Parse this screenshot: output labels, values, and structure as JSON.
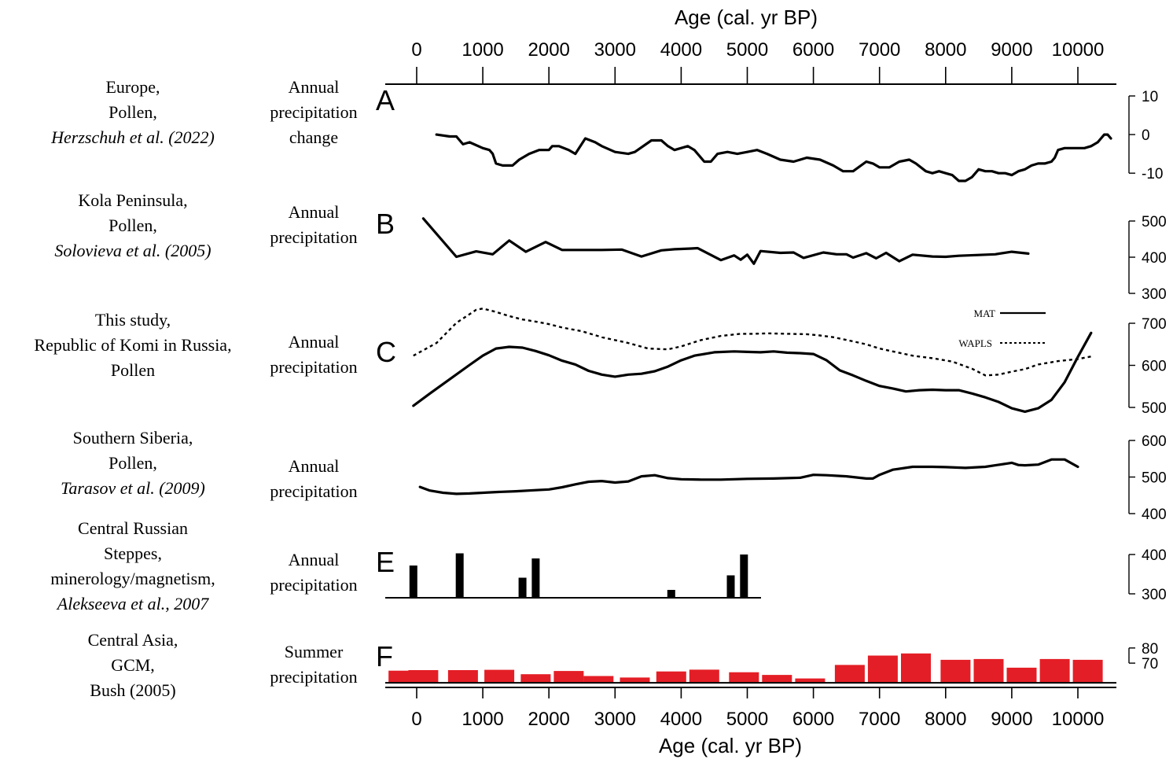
{
  "top_axis": {
    "title": "Age (cal. yr BP)",
    "ticks": [
      "0",
      "1000",
      "2000",
      "3000",
      "4000",
      "5000",
      "6000",
      "7000",
      "8000",
      "9000",
      "10000"
    ]
  },
  "bottom_axis": {
    "title": "Age (cal. yr BP)",
    "ticks": [
      "0",
      "1000",
      "2000",
      "3000",
      "4000",
      "5000",
      "6000",
      "7000",
      "8000",
      "9000",
      "10000"
    ]
  },
  "colors": {
    "line": "#000000",
    "bar_red": "#e41e26",
    "bar_black": "#000000"
  },
  "chart_data": [
    {
      "id": "A",
      "type": "line",
      "letter": "A",
      "source": {
        "line1": "Europe,",
        "line2": "Pollen,",
        "line3": "Herzschuh et al. (2022)"
      },
      "title": {
        "line1": "Annual",
        "line2": "precipitation",
        "line3": "change"
      },
      "ylim": [
        -12,
        10
      ],
      "yticks": [
        "10",
        "0",
        "-10"
      ],
      "ytick_values": [
        10,
        0,
        -10
      ],
      "series": [
        {
          "style": "solid",
          "x": [
            300,
            500,
            600,
            700,
            800,
            1000,
            1100,
            1150,
            1200,
            1300,
            1450,
            1550,
            1700,
            1850,
            2000,
            2050,
            2150,
            2300,
            2400,
            2550,
            2700,
            2800,
            3000,
            3200,
            3300,
            3550,
            3700,
            3800,
            3900,
            4100,
            4200,
            4350,
            4450,
            4550,
            4700,
            4850,
            5000,
            5150,
            5300,
            5500,
            5700,
            5900,
            6100,
            6300,
            6450,
            6600,
            6800,
            6900,
            7000,
            7150,
            7300,
            7450,
            7550,
            7700,
            7800,
            7900,
            8000,
            8100,
            8200,
            8300,
            8400,
            8500,
            8600,
            8700,
            8800,
            8900,
            9000,
            9100,
            9200,
            9300,
            9400,
            9500,
            9600,
            9650,
            9700,
            9800,
            10000,
            10100,
            10200,
            10250,
            10300,
            10350,
            10400,
            10450,
            10500
          ],
          "y": [
            0,
            -0.5,
            -0.5,
            -2.5,
            -2,
            -3.5,
            -4,
            -5,
            -7.5,
            -8,
            -8,
            -6.5,
            -5,
            -4,
            -4,
            -3,
            -3,
            -4,
            -5,
            -1,
            -2,
            -3,
            -4.5,
            -5,
            -4.5,
            -1.5,
            -1.5,
            -3,
            -4,
            -3,
            -4,
            -7,
            -7,
            -5,
            -4.5,
            -5,
            -4.5,
            -4,
            -5,
            -6.5,
            -7,
            -6,
            -6.5,
            -8,
            -9.5,
            -9.5,
            -7,
            -7.5,
            -8.5,
            -8.5,
            -7,
            -6.5,
            -7.5,
            -9.5,
            -10,
            -9.5,
            -10,
            -10.5,
            -12,
            -12,
            -11,
            -9,
            -9.5,
            -9.5,
            -10,
            -10,
            -10.5,
            -9.5,
            -9,
            -8,
            -7.5,
            -7.5,
            -7,
            -6,
            -4,
            -3.5,
            -3.5,
            -3.5,
            -3,
            -2.5,
            -2,
            -1,
            0,
            0,
            -1
          ]
        }
      ]
    },
    {
      "id": "B",
      "type": "line",
      "letter": "B",
      "source": {
        "line1": "Kola Peninsula,",
        "line2": "Pollen,",
        "line3": "Solovieva et al. (2005)"
      },
      "title": {
        "line1": "Annual",
        "line2": "precipitation",
        "line3": ""
      },
      "ylim": [
        300,
        500
      ],
      "yticks": [
        "500",
        "400",
        "300"
      ],
      "ytick_values": [
        500,
        400,
        300
      ],
      "series": [
        {
          "style": "solid",
          "x": [
            100,
            600,
            900,
            1150,
            1400,
            1650,
            1950,
            2200,
            2500,
            2800,
            3100,
            3400,
            3700,
            3900,
            4150,
            4250,
            4600,
            4800,
            4900,
            5000,
            5100,
            5200,
            5500,
            5700,
            5850,
            6150,
            6350,
            6500,
            6600,
            6800,
            6950,
            7100,
            7300,
            7500,
            7800,
            8000,
            8200,
            8500,
            8750,
            9000,
            9250
          ],
          "y": [
            507,
            401,
            416,
            408,
            446,
            415,
            442,
            420,
            420,
            420,
            421,
            402,
            419,
            422,
            424,
            425,
            392,
            405,
            393,
            407,
            382,
            417,
            412,
            413,
            398,
            413,
            408,
            408,
            399,
            411,
            397,
            412,
            389,
            407,
            402,
            401,
            404,
            406,
            408,
            415,
            410
          ]
        }
      ]
    },
    {
      "id": "C",
      "type": "line",
      "letter": "C",
      "source": {
        "line1": "This study,",
        "line2": "Republic of  Komi in Russia,",
        "line3": "Pollen"
      },
      "title": {
        "line1": "Annual",
        "line2": "precipitation",
        "line3": ""
      },
      "ylim": [
        500,
        700
      ],
      "yticks": [
        "700",
        "600",
        "500"
      ],
      "ytick_values": [
        700,
        600,
        500
      ],
      "legend": {
        "solid": "MAT",
        "dotted": "WAPLS"
      },
      "series": [
        {
          "name": "MAT",
          "style": "solid",
          "x": [
            -50,
            200,
            500,
            800,
            1000,
            1200,
            1400,
            1600,
            1800,
            2000,
            2200,
            2400,
            2600,
            2800,
            3000,
            3200,
            3400,
            3600,
            3800,
            4000,
            4200,
            4500,
            4800,
            5000,
            5200,
            5400,
            5600,
            5800,
            6000,
            6200,
            6400,
            6600,
            6800,
            7000,
            7200,
            7400,
            7600,
            7800,
            8000,
            8200,
            8400,
            8600,
            8800,
            9000,
            9200,
            9400,
            9600,
            9800,
            10000,
            10200
          ],
          "y": [
            504,
            533,
            567,
            601,
            623,
            640,
            644,
            642,
            634,
            624,
            611,
            602,
            587,
            578,
            573,
            578,
            580,
            586,
            597,
            612,
            623,
            631,
            633,
            632,
            631,
            633,
            630,
            629,
            627,
            612,
            588,
            576,
            563,
            551,
            545,
            538,
            541,
            542,
            541,
            541,
            533,
            524,
            513,
            498,
            490,
            498,
            518,
            560,
            620,
            677
          ]
        },
        {
          "name": "WAPLS",
          "style": "dotted",
          "x": [
            -50,
            300,
            600,
            900,
            1000,
            1200,
            1400,
            1600,
            1800,
            2000,
            2200,
            2500,
            2800,
            3000,
            3200,
            3500,
            3800,
            4000,
            4300,
            4600,
            4900,
            5100,
            5300,
            5600,
            5900,
            6100,
            6300,
            6600,
            6800,
            7000,
            7200,
            7500,
            7800,
            8100,
            8400,
            8600,
            8800,
            9000,
            9200,
            9400,
            9700,
            10000,
            10200
          ],
          "y": [
            623,
            653,
            701,
            732,
            735,
            727,
            717,
            709,
            704,
            698,
            690,
            681,
            667,
            660,
            653,
            640,
            638,
            645,
            660,
            670,
            675,
            675,
            676,
            675,
            674,
            671,
            667,
            657,
            650,
            640,
            633,
            623,
            617,
            609,
            592,
            576,
            578,
            585,
            591,
            602,
            610,
            615,
            621
          ]
        }
      ]
    },
    {
      "id": "D",
      "type": "line",
      "letter": "",
      "source": {
        "line1": "Southern Siberia,",
        "line2": "Pollen,",
        "line3": "Tarasov et al. (2009)"
      },
      "title": {
        "line1": "Annual",
        "line2": "precipitation",
        "line3": ""
      },
      "ylim": [
        400,
        600
      ],
      "yticks": [
        "600",
        "500",
        "400"
      ],
      "ytick_values": [
        600,
        500,
        400
      ],
      "series": [
        {
          "style": "solid",
          "x": [
            50,
            200,
            400,
            600,
            800,
            1000,
            1200,
            1500,
            1800,
            2000,
            2200,
            2400,
            2600,
            2800,
            3000,
            3200,
            3400,
            3600,
            3800,
            4000,
            4300,
            4600,
            5000,
            5400,
            5800,
            6000,
            6200,
            6500,
            6800,
            6900,
            7000,
            7200,
            7500,
            7800,
            8000,
            8300,
            8600,
            9000,
            9100,
            9200,
            9400,
            9600,
            9800,
            10000
          ],
          "y": [
            473,
            463,
            457,
            454,
            455,
            457,
            459,
            461,
            464,
            466,
            472,
            480,
            487,
            489,
            485,
            488,
            502,
            505,
            497,
            494,
            493,
            493,
            495,
            496,
            498,
            506,
            505,
            502,
            496,
            496,
            506,
            520,
            528,
            528,
            527,
            525,
            528,
            539,
            533,
            532,
            534,
            548,
            548,
            528
          ]
        }
      ]
    },
    {
      "id": "E",
      "type": "bar",
      "letter": "E",
      "source": {
        "line1": "Central Russian",
        "line2": "Steppes,",
        "line3": "minerology/magnetism,",
        "line4": "Alekseeva et al., 2007"
      },
      "title": {
        "line1": "Annual",
        "line2": "precipitation",
        "line3": ""
      },
      "ylim": [
        290,
        410
      ],
      "yticks": [
        "400",
        "300"
      ],
      "ytick_values": [
        400,
        300
      ],
      "baseline": 290,
      "x": [
        -50,
        650,
        1600,
        1800,
        3850,
        4750,
        4950
      ],
      "values": [
        372,
        403,
        341,
        390,
        310,
        347,
        400
      ]
    },
    {
      "id": "F",
      "type": "bar",
      "letter": "F",
      "source": {
        "line1": "Central Asia,",
        "line2": "GCM,",
        "line3": "Bush (2005)"
      },
      "title": {
        "line1": "Summer",
        "line2": "precipitation",
        "line3": ""
      },
      "ylim": [
        55,
        82
      ],
      "yticks": [
        "80",
        "70"
      ],
      "ytick_values": [
        80,
        70
      ],
      "baseline": 57,
      "x": [
        -200,
        100,
        700,
        1250,
        1800,
        2300,
        2750,
        3300,
        3850,
        4350,
        4950,
        5450,
        5950,
        6550,
        7050,
        7550,
        8150,
        8650,
        9150,
        9650,
        10150
      ],
      "values": [
        65.0,
        65.4,
        65.4,
        65.6,
        62.7,
        64.8,
        61.5,
        60.5,
        64.5,
        65.7,
        64.0,
        62.2,
        59.9,
        68.8,
        75.0,
        76.4,
        72.2,
        72.7,
        67.0,
        72.7,
        72.2
      ]
    }
  ]
}
